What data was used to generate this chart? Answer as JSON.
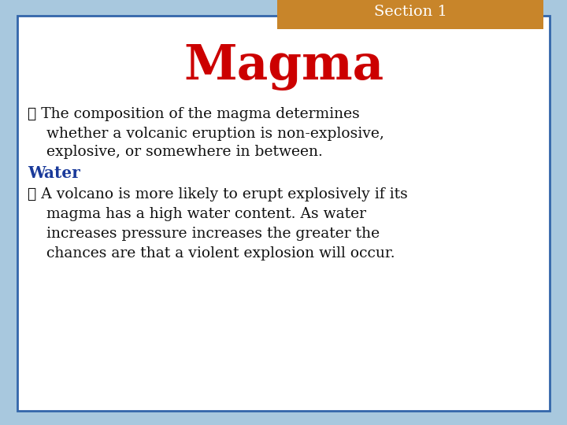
{
  "background_color": "#a8c8de",
  "card_color": "#ffffff",
  "card_border_color": "#3366aa",
  "section_box_color": "#c8852a",
  "section_text": "Section 1",
  "section_text_color": "#ffffff",
  "title": "Magma",
  "title_color": "#cc0000",
  "water_label": "Water",
  "water_color": "#1a3a9a",
  "text_color": "#111111",
  "bullet_symbol": "❖",
  "b1_l1_bullet": "❖ The composition of the magma determines",
  "b1_l2": "    whether a volcanic eruption is non-explosive,",
  "b1_l3": "    explosive, or somewhere in between.",
  "b2_l1_bullet": "❖ A volcano is more likely to erupt explosively if its",
  "b2_l2": "    magma has a high water content. As water",
  "b2_l3": "    increases pressure increases the greater the",
  "b2_l4": "    chances are that a violent explosion will occur.",
  "figsize": [
    7.2,
    5.4
  ],
  "dpi": 100
}
